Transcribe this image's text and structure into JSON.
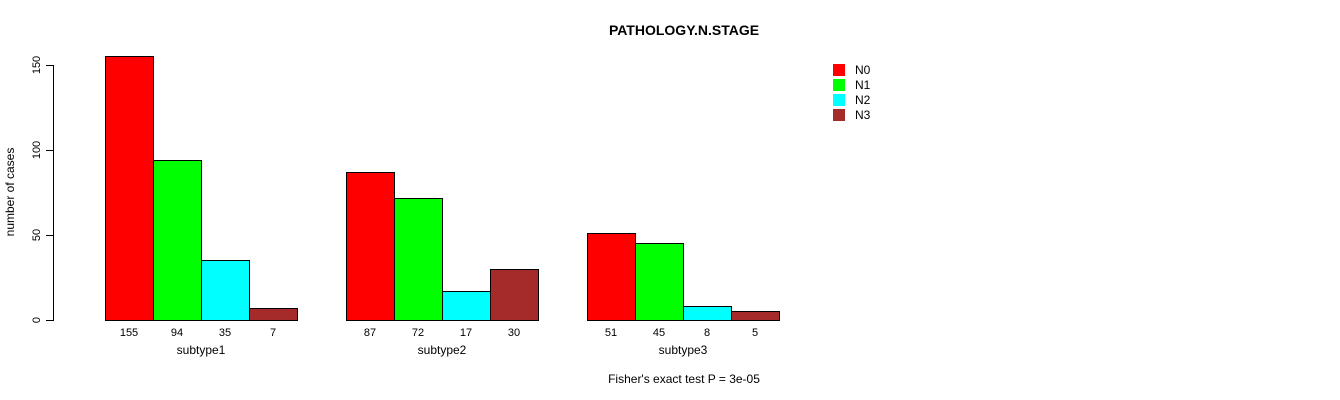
{
  "title": "PATHOLOGY.N.STAGE",
  "annotation": "Fisher's exact test P = 3e-05",
  "chart_data": {
    "type": "bar",
    "title": "PATHOLOGY.N.STAGE",
    "xlabel": "",
    "ylabel": "number of cases",
    "categories": [
      "subtype1",
      "subtype2",
      "subtype3"
    ],
    "series": [
      {
        "name": "N0",
        "color": "#FF0000",
        "values": [
          155,
          87,
          51
        ]
      },
      {
        "name": "N1",
        "color": "#00FF00",
        "values": [
          94,
          72,
          45
        ]
      },
      {
        "name": "N2",
        "color": "#00FFFF",
        "values": [
          35,
          17,
          8
        ]
      },
      {
        "name": "N3",
        "color": "#A52A2A",
        "values": [
          7,
          30,
          5
        ]
      }
    ],
    "yticks": [
      0,
      50,
      100,
      150
    ],
    "ylim": [
      0,
      155
    ],
    "grid": false,
    "legend_position": "right",
    "bar_value_labels_shown": true,
    "annotation": "Fisher's exact test P = 3e-05"
  }
}
